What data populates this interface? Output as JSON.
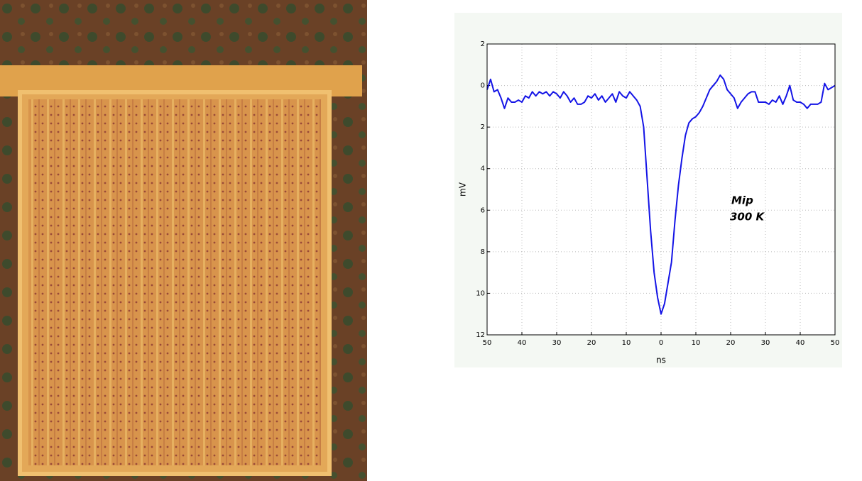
{
  "chart_data": {
    "type": "line",
    "x_label": "ns",
    "y_label": "mV",
    "annotations": [
      "Mip",
      "300 K"
    ],
    "color": "#1414e6",
    "grid": true,
    "xlim": [
      -50,
      50
    ],
    "ylim": [
      -12,
      2
    ],
    "xticks": [
      {
        "value": -50,
        "label": "50"
      },
      {
        "value": -40,
        "label": "40"
      },
      {
        "value": -30,
        "label": "30"
      },
      {
        "value": -20,
        "label": "20"
      },
      {
        "value": -10,
        "label": "10"
      },
      0,
      10,
      20,
      30,
      40,
      50
    ],
    "yticks": [
      2,
      0,
      {
        "value": -2,
        "label": "2"
      },
      {
        "value": -4,
        "label": "4"
      },
      {
        "value": -6,
        "label": "6"
      },
      {
        "value": -8,
        "label": "8"
      },
      {
        "value": -10,
        "label": "10"
      },
      {
        "value": -12,
        "label": "12"
      }
    ],
    "x": [
      -50,
      -49,
      -48,
      -47,
      -46,
      -45,
      -44,
      -43,
      -42,
      -41,
      -40,
      -39,
      -38,
      -37,
      -36,
      -35,
      -34,
      -33,
      -32,
      -31,
      -30,
      -29,
      -28,
      -27,
      -26,
      -25,
      -24,
      -23,
      -22,
      -21,
      -20,
      -19,
      -18,
      -17,
      -16,
      -15,
      -14,
      -13,
      -12,
      -11,
      -10,
      -9,
      -8,
      -7,
      -6,
      -5,
      -4,
      -3,
      -2,
      -1,
      0,
      1,
      2,
      3,
      4,
      5,
      6,
      7,
      8,
      9,
      10,
      11,
      12,
      13,
      14,
      15,
      16,
      17,
      18,
      19,
      20,
      21,
      22,
      23,
      24,
      25,
      26,
      27,
      28,
      29,
      30,
      31,
      32,
      33,
      34,
      35,
      36,
      37,
      38,
      39,
      40,
      41,
      42,
      43,
      44,
      45,
      46,
      47,
      48,
      49,
      50
    ],
    "values": [
      -0.2,
      0.3,
      -0.3,
      -0.2,
      -0.6,
      -1.1,
      -0.6,
      -0.8,
      -0.8,
      -0.7,
      -0.8,
      -0.5,
      -0.6,
      -0.3,
      -0.5,
      -0.3,
      -0.4,
      -0.3,
      -0.5,
      -0.3,
      -0.4,
      -0.6,
      -0.3,
      -0.5,
      -0.8,
      -0.6,
      -0.9,
      -0.9,
      -0.8,
      -0.5,
      -0.6,
      -0.4,
      -0.7,
      -0.5,
      -0.8,
      -0.6,
      -0.4,
      -0.8,
      -0.3,
      -0.5,
      -0.6,
      -0.3,
      -0.5,
      -0.7,
      -1.0,
      -2.0,
      -4.5,
      -7.0,
      -9.0,
      -10.2,
      -11.0,
      -10.5,
      -9.5,
      -8.5,
      -6.5,
      -4.8,
      -3.5,
      -2.4,
      -1.8,
      -1.6,
      -1.5,
      -1.3,
      -1.0,
      -0.6,
      -0.2,
      0.0,
      0.2,
      0.5,
      0.3,
      -0.2,
      -0.4,
      -0.6,
      -1.1,
      -0.8,
      -0.6,
      -0.4,
      -0.3,
      -0.3,
      -0.8,
      -0.8,
      -0.8,
      -0.9,
      -0.7,
      -0.8,
      -0.5,
      -0.9,
      -0.5,
      0.0,
      -0.7,
      -0.8,
      -0.8,
      -0.9,
      -1.1,
      -0.9,
      -0.9,
      -0.9,
      -0.8,
      0.1,
      -0.2,
      -0.1,
      0.0
    ]
  }
}
